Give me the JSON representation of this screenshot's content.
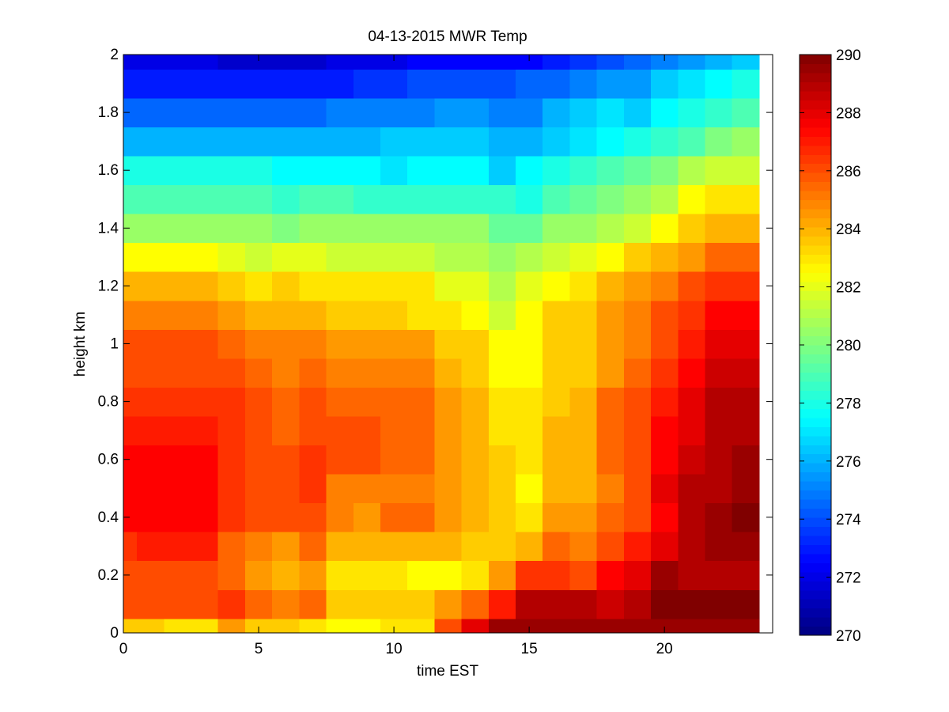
{
  "chart_data": {
    "type": "heatmap",
    "title": "04-13-2015 MWR Temp",
    "xlabel": "time EST",
    "ylabel": "height km",
    "xlim": [
      0,
      24
    ],
    "ylim": [
      0,
      2
    ],
    "xticks": [
      0,
      5,
      10,
      15,
      20
    ],
    "yticks": [
      0,
      0.2,
      0.4,
      0.6,
      0.8,
      1,
      1.2,
      1.4,
      1.6,
      1.8,
      2
    ],
    "colorbar": {
      "colormap": "jet",
      "clim": [
        270,
        290
      ],
      "ticks": [
        270,
        272,
        274,
        276,
        278,
        280,
        282,
        284,
        286,
        288,
        290
      ]
    },
    "x_edges": [
      0,
      0.5,
      1.5,
      2.5,
      3.5,
      4.5,
      5.5,
      6.5,
      7.5,
      8.5,
      9.5,
      10.5,
      11.5,
      12.5,
      13.5,
      14.5,
      15.5,
      16.5,
      17.5,
      18.5,
      19.5,
      20.5,
      21.5,
      22.5,
      23.5
    ],
    "y_edges": [
      0,
      0.05,
      0.15,
      0.25,
      0.35,
      0.45,
      0.55,
      0.65,
      0.75,
      0.85,
      0.95,
      1.05,
      1.15,
      1.25,
      1.35,
      1.45,
      1.55,
      1.65,
      1.75,
      1.85,
      1.95,
      2.0
    ],
    "values": [
      [
        283.5,
        283.5,
        283.0,
        283.0,
        284.5,
        283.5,
        283.5,
        283.0,
        282.5,
        282.5,
        283.0,
        283.0,
        286.0,
        288.0,
        289.5,
        289.5,
        289.5,
        289.5,
        289.5,
        289.5,
        289.5,
        289.5,
        289.5,
        289.5
      ],
      [
        286.0,
        286.0,
        286.0,
        286.0,
        286.5,
        285.5,
        285.0,
        285.5,
        283.5,
        283.5,
        283.5,
        283.5,
        284.5,
        285.5,
        287.0,
        289.0,
        289.0,
        289.0,
        288.5,
        289.0,
        290.0,
        290.0,
        290.0,
        290.0
      ],
      [
        286.0,
        286.0,
        286.0,
        286.0,
        285.5,
        284.5,
        284.0,
        284.5,
        283.0,
        283.0,
        283.0,
        282.5,
        282.5,
        283.0,
        284.5,
        286.5,
        286.5,
        286.0,
        287.5,
        288.0,
        289.5,
        289.0,
        289.0,
        289.0
      ],
      [
        286.5,
        287.0,
        287.0,
        287.0,
        285.5,
        285.0,
        284.5,
        285.5,
        284.0,
        284.0,
        284.0,
        284.0,
        284.0,
        283.5,
        283.5,
        284.0,
        285.5,
        285.0,
        286.0,
        287.0,
        288.0,
        289.0,
        289.5,
        289.5
      ],
      [
        287.5,
        287.5,
        287.5,
        287.5,
        286.5,
        286.0,
        286.0,
        286.0,
        285.0,
        284.5,
        285.5,
        285.5,
        284.5,
        284.0,
        283.5,
        283.0,
        284.5,
        284.5,
        285.5,
        286.0,
        287.5,
        289.0,
        289.5,
        290.0
      ],
      [
        287.5,
        287.5,
        287.5,
        287.5,
        286.5,
        286.0,
        286.0,
        286.5,
        285.0,
        285.0,
        285.0,
        285.0,
        284.5,
        284.0,
        283.5,
        282.5,
        284.0,
        284.0,
        285.0,
        286.0,
        288.0,
        289.0,
        289.0,
        289.5
      ],
      [
        287.5,
        287.5,
        287.5,
        287.5,
        286.5,
        286.0,
        286.0,
        286.5,
        286.0,
        286.0,
        285.5,
        285.5,
        284.5,
        284.0,
        283.5,
        283.0,
        284.0,
        284.0,
        285.5,
        286.0,
        287.5,
        288.5,
        289.0,
        289.5
      ],
      [
        287.0,
        287.0,
        287.0,
        287.0,
        286.5,
        286.0,
        285.5,
        286.0,
        286.0,
        286.0,
        285.5,
        285.5,
        284.5,
        284.0,
        283.0,
        283.0,
        284.0,
        284.0,
        285.5,
        286.0,
        287.5,
        288.0,
        289.0,
        289.0
      ],
      [
        286.5,
        286.5,
        286.5,
        286.5,
        286.5,
        286.0,
        285.5,
        286.0,
        285.5,
        285.5,
        285.5,
        285.5,
        284.5,
        284.0,
        283.0,
        283.0,
        283.5,
        284.0,
        285.5,
        286.0,
        287.0,
        288.0,
        289.0,
        289.0
      ],
      [
        286.0,
        286.0,
        286.0,
        286.0,
        286.0,
        285.5,
        285.0,
        285.5,
        285.0,
        285.0,
        285.0,
        285.0,
        284.0,
        283.5,
        282.5,
        282.5,
        283.5,
        283.5,
        284.5,
        285.5,
        286.5,
        287.5,
        288.5,
        288.5
      ],
      [
        286.0,
        286.0,
        286.0,
        286.0,
        285.5,
        285.0,
        285.0,
        285.0,
        284.5,
        284.5,
        284.5,
        284.5,
        283.5,
        283.5,
        282.5,
        282.5,
        283.5,
        283.5,
        284.5,
        285.0,
        286.0,
        287.0,
        288.0,
        288.0
      ],
      [
        285.0,
        285.0,
        285.0,
        285.0,
        284.5,
        284.0,
        284.0,
        284.0,
        283.5,
        283.5,
        283.5,
        283.0,
        283.0,
        282.5,
        281.5,
        282.5,
        283.5,
        283.5,
        284.5,
        285.0,
        286.0,
        286.5,
        287.5,
        287.5
      ],
      [
        284.0,
        284.0,
        284.0,
        284.0,
        283.5,
        283.0,
        283.5,
        283.0,
        283.0,
        283.0,
        283.0,
        283.0,
        282.0,
        282.0,
        281.0,
        282.0,
        282.5,
        283.0,
        284.0,
        284.5,
        285.0,
        286.0,
        286.5,
        286.5
      ],
      [
        282.5,
        282.5,
        282.5,
        282.5,
        282.0,
        281.5,
        282.0,
        282.0,
        281.5,
        281.5,
        281.5,
        281.5,
        281.0,
        281.0,
        280.5,
        281.0,
        281.5,
        282.0,
        282.5,
        283.5,
        284.0,
        284.5,
        285.5,
        285.5
      ],
      [
        280.5,
        280.5,
        280.5,
        280.5,
        280.5,
        280.5,
        280.0,
        280.5,
        280.5,
        280.5,
        280.5,
        280.5,
        280.5,
        280.5,
        279.5,
        279.5,
        280.5,
        280.5,
        281.0,
        281.5,
        282.5,
        283.5,
        284.0,
        284.0
      ],
      [
        279.0,
        279.0,
        279.0,
        279.0,
        279.0,
        279.0,
        278.5,
        279.0,
        279.0,
        278.5,
        278.5,
        278.5,
        278.5,
        278.5,
        278.5,
        278.0,
        279.0,
        279.5,
        280.0,
        280.5,
        281.0,
        282.5,
        283.0,
        283.0
      ],
      [
        278.0,
        278.0,
        278.0,
        278.0,
        278.0,
        278.0,
        277.5,
        277.5,
        277.5,
        277.5,
        277.0,
        277.5,
        277.5,
        277.5,
        276.5,
        277.5,
        278.0,
        278.5,
        279.0,
        279.5,
        280.0,
        281.0,
        281.5,
        281.5
      ],
      [
        276.0,
        276.0,
        276.0,
        276.0,
        276.0,
        276.0,
        276.0,
        276.0,
        276.0,
        276.0,
        276.5,
        276.5,
        276.5,
        276.5,
        276.0,
        276.0,
        276.5,
        277.0,
        277.5,
        278.0,
        278.5,
        279.0,
        280.0,
        280.5
      ],
      [
        274.5,
        274.5,
        274.5,
        274.5,
        274.5,
        274.5,
        274.5,
        274.5,
        275.0,
        275.0,
        275.0,
        275.0,
        275.5,
        275.5,
        275.0,
        275.0,
        276.0,
        276.5,
        277.0,
        276.5,
        277.5,
        278.0,
        278.5,
        279.0
      ],
      [
        273.0,
        273.0,
        273.0,
        273.0,
        273.0,
        273.0,
        273.0,
        273.0,
        273.0,
        273.5,
        273.5,
        274.0,
        274.0,
        274.0,
        274.0,
        274.5,
        274.5,
        275.0,
        275.5,
        275.5,
        276.5,
        277.0,
        277.5,
        278.0
      ],
      [
        272.0,
        272.0,
        272.0,
        272.0,
        271.5,
        271.5,
        271.5,
        271.5,
        272.0,
        272.0,
        272.0,
        272.5,
        272.5,
        272.5,
        272.5,
        272.5,
        273.0,
        273.5,
        274.0,
        274.5,
        275.0,
        275.5,
        276.0,
        276.5
      ]
    ]
  }
}
